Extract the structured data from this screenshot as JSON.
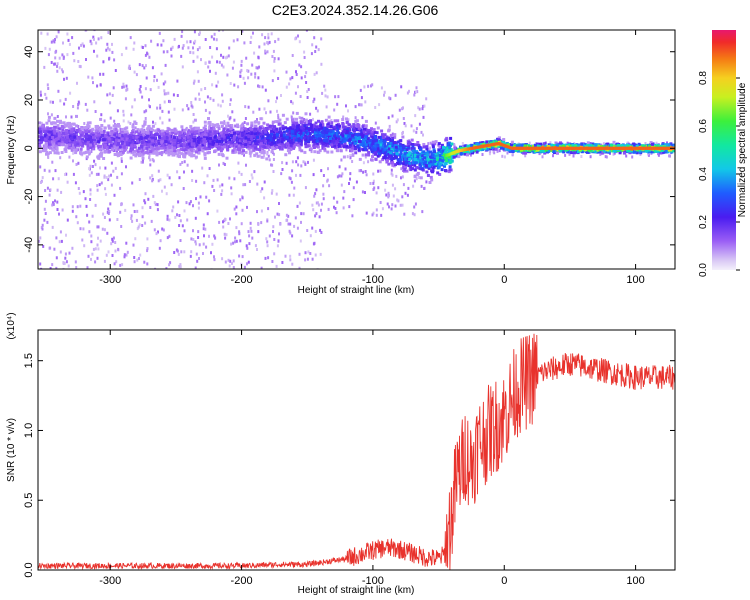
{
  "title": "C2E3.2024.352.14.26.G06",
  "colors": {
    "snr_line": "#e8322c",
    "background": "#ffffff",
    "axis": "#000000"
  },
  "chart_data": [
    {
      "type": "heatmap",
      "xlabel": "Height of straight line (km)",
      "ylabel": "Frequency (Hz)",
      "xlim": [
        -355,
        130
      ],
      "ylim": [
        -50,
        49
      ],
      "xticks": [
        "-300",
        "-200",
        "-100",
        "0",
        "100"
      ],
      "yticks": [
        "40",
        "20",
        "0",
        "-20",
        "-40"
      ],
      "colorbar": {
        "label": "Normalized spectral amplitude",
        "range": [
          0,
          1
        ],
        "ticks": [
          "0.0",
          "0.2",
          "0.4",
          "0.6",
          "0.8"
        ],
        "colormap": "rainbow (light violet to red)"
      },
      "ridge": {
        "description": "frequency of maximum spectral amplitude",
        "x": [
          -350,
          -300,
          -250,
          -200,
          -170,
          -150,
          -120,
          -100,
          -80,
          -60,
          -45,
          -35,
          -25,
          -15,
          -5,
          5,
          20,
          50,
          100,
          130
        ],
        "y": [
          5,
          3,
          3,
          4,
          5,
          6,
          5,
          2,
          -2,
          -5,
          -3,
          -1,
          0,
          1,
          2,
          0,
          0,
          0,
          0,
          0
        ],
        "peak_amplitude": [
          0.2,
          0.2,
          0.2,
          0.25,
          0.3,
          0.35,
          0.38,
          0.4,
          0.45,
          0.45,
          0.65,
          0.8,
          0.9,
          0.9,
          0.9,
          0.9,
          0.9,
          0.9,
          0.9,
          0.9
        ]
      }
    },
    {
      "type": "line",
      "xlabel": "Height of straight line (km)",
      "ylabel": "SNR (10 * v/v)",
      "y_multiplier": "(x10⁴)",
      "xlim": [
        -355,
        130
      ],
      "ylim": [
        0,
        1.72
      ],
      "xticks": [
        "-300",
        "-200",
        "-100",
        "0",
        "100"
      ],
      "yticks": [
        "0.0",
        "0.5",
        "1.0",
        "1.5"
      ],
      "series": [
        {
          "x": [
            -355,
            -300,
            -250,
            -200,
            -170,
            -150,
            -120,
            -100,
            -90,
            -80,
            -70,
            -60,
            -50,
            -45,
            -40,
            -37,
            -35,
            -32,
            -30,
            -25,
            -20,
            -15,
            -10,
            -5,
            0,
            5,
            10,
            20,
            30,
            40,
            50,
            60,
            70,
            80,
            90,
            100,
            110,
            120,
            130
          ],
          "y": [
            0.03,
            0.03,
            0.03,
            0.03,
            0.04,
            0.04,
            0.08,
            0.14,
            0.16,
            0.15,
            0.12,
            0.09,
            0.08,
            0.12,
            0.4,
            0.6,
            0.7,
            0.75,
            0.85,
            0.75,
            0.9,
            0.95,
            1.0,
            1.05,
            1.1,
            1.2,
            1.3,
            1.37,
            1.42,
            1.45,
            1.48,
            1.46,
            1.44,
            1.42,
            1.4,
            1.38,
            1.38,
            1.38,
            1.38
          ]
        }
      ]
    }
  ]
}
